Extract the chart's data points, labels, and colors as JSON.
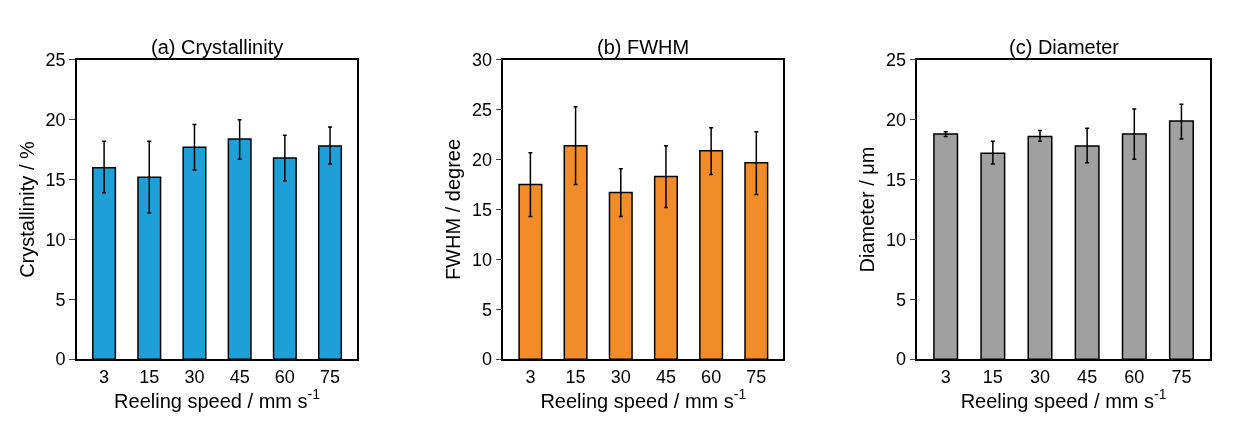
{
  "chart_data": [
    {
      "type": "bar",
      "title": "(a) Crystallinity",
      "xlabel": "Reeling speed / mm s$^{-1}$",
      "ylabel": "Crystallinity / %",
      "categories": [
        "3",
        "15",
        "30",
        "45",
        "60",
        "75"
      ],
      "values": [
        16.0,
        15.2,
        17.7,
        18.4,
        16.8,
        17.8
      ],
      "errors": [
        [
          13.9,
          18.2
        ],
        [
          12.2,
          18.2
        ],
        [
          15.8,
          19.6
        ],
        [
          16.7,
          20.0
        ],
        [
          14.9,
          18.7
        ],
        [
          16.3,
          19.4
        ]
      ],
      "color": "#1e9fd8",
      "ylim": [
        0,
        25
      ],
      "yticks": [
        0,
        5,
        10,
        15,
        20,
        25
      ]
    },
    {
      "type": "bar",
      "title": "(b) FWHM",
      "xlabel": "Reeling speed / mm s$^{-1}$",
      "ylabel": "FWHM / degree",
      "categories": [
        "3",
        "15",
        "30",
        "45",
        "60",
        "75"
      ],
      "values": [
        17.5,
        21.4,
        16.7,
        18.3,
        20.9,
        19.7
      ],
      "errors": [
        [
          14.3,
          20.7
        ],
        [
          17.5,
          25.3
        ],
        [
          14.3,
          19.1
        ],
        [
          15.2,
          21.4
        ],
        [
          18.5,
          23.2
        ],
        [
          16.5,
          22.8
        ]
      ],
      "color": "#f28c28",
      "ylim": [
        0,
        30
      ],
      "yticks": [
        0,
        5,
        10,
        15,
        20,
        25,
        30
      ]
    },
    {
      "type": "bar",
      "title": "(c) Diameter",
      "xlabel": "Reeling speed / mm s$^{-1}$",
      "ylabel": "Diameter / μm",
      "categories": [
        "3",
        "15",
        "30",
        "45",
        "60",
        "75"
      ],
      "values": [
        18.8,
        17.2,
        18.6,
        17.8,
        18.8,
        19.9
      ],
      "errors": [
        [
          18.6,
          19.0
        ],
        [
          16.3,
          18.2
        ],
        [
          18.2,
          19.1
        ],
        [
          16.4,
          19.3
        ],
        [
          16.7,
          20.9
        ],
        [
          18.4,
          21.3
        ]
      ],
      "color": "#a0a0a0",
      "ylim": [
        0,
        25
      ],
      "yticks": [
        0,
        5,
        10,
        15,
        20,
        25
      ]
    }
  ]
}
